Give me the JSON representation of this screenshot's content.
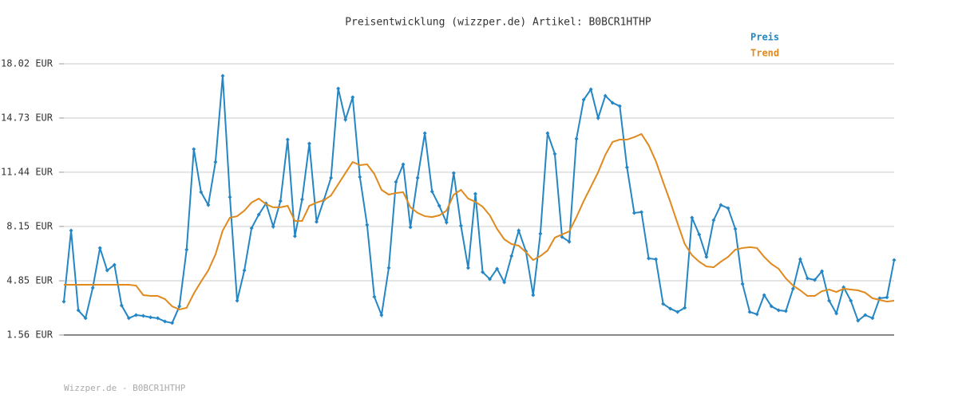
{
  "chart_data": {
    "type": "line",
    "title": "Preisentwicklung (wizzper.de) Artikel: B0BCR1HTHP",
    "footer": "Wizzper.de - B0BCR1HTHP",
    "ylim": [
      1.56,
      18.02
    ],
    "yticks": [
      {
        "value": 1.56,
        "label": "1.56 EUR"
      },
      {
        "value": 4.85,
        "label": "4.85 EUR"
      },
      {
        "value": 8.15,
        "label": "8.15 EUR"
      },
      {
        "value": 11.44,
        "label": "11.44 EUR"
      },
      {
        "value": 14.73,
        "label": "14.73 EUR"
      },
      {
        "value": 18.02,
        "label": "18.02 EUR"
      }
    ],
    "grid": true,
    "legend": "top-right",
    "series": [
      {
        "name": "Preis",
        "color": "#2486c4",
        "markers": true,
        "values": [
          3.59,
          7.9,
          3.06,
          2.58,
          4.42,
          6.84,
          5.48,
          5.82,
          3.35,
          2.58,
          2.77,
          2.72,
          2.63,
          2.58,
          2.38,
          2.29,
          3.3,
          6.74,
          12.84,
          10.23,
          9.45,
          12.06,
          17.29,
          9.93,
          3.64,
          5.48,
          8.05,
          8.87,
          9.55,
          8.14,
          9.69,
          13.42,
          7.56,
          9.79,
          13.18,
          8.43,
          9.74,
          11.1,
          16.52,
          14.63,
          15.99,
          11.15,
          8.24,
          3.88,
          2.77,
          5.63,
          10.85,
          11.92,
          8.1,
          11.1,
          13.81,
          10.27,
          9.4,
          8.39,
          11.39,
          8.19,
          5.63,
          10.13,
          5.38,
          4.95,
          5.58,
          4.76,
          6.35,
          7.9,
          6.64,
          3.98,
          7.71,
          13.81,
          12.55,
          7.51,
          7.22,
          13.47,
          15.84,
          16.47,
          14.73,
          16.08,
          15.65,
          15.45,
          11.73,
          8.97,
          9.02,
          6.21,
          6.16,
          3.45,
          3.16,
          2.96,
          3.21,
          8.68,
          7.66,
          6.3,
          8.53,
          9.45,
          9.26,
          8.0,
          4.66,
          2.96,
          2.82,
          3.98,
          3.3,
          3.06,
          3.01,
          4.37,
          6.16,
          5.0,
          4.9,
          5.43,
          3.64,
          2.87,
          4.46,
          3.64,
          2.43,
          2.77,
          2.58,
          3.79,
          3.84,
          6.11
        ]
      },
      {
        "name": "Trend",
        "color": "#e0891c",
        "markers": false,
        "values": [
          4.61,
          4.61,
          4.61,
          4.61,
          4.61,
          4.61,
          4.61,
          4.61,
          4.61,
          4.61,
          4.56,
          3.98,
          3.93,
          3.93,
          3.74,
          3.3,
          3.11,
          3.21,
          4.08,
          4.8,
          5.48,
          6.45,
          7.9,
          8.68,
          8.77,
          9.11,
          9.6,
          9.84,
          9.5,
          9.31,
          9.31,
          9.4,
          8.48,
          8.48,
          9.4,
          9.6,
          9.74,
          10.03,
          10.71,
          11.39,
          12.06,
          11.87,
          11.92,
          11.34,
          10.37,
          10.08,
          10.18,
          10.23,
          9.31,
          8.97,
          8.77,
          8.72,
          8.82,
          9.11,
          10.08,
          10.37,
          9.84,
          9.64,
          9.35,
          8.82,
          8.0,
          7.37,
          7.08,
          6.98,
          6.59,
          6.11,
          6.35,
          6.69,
          7.47,
          7.66,
          7.85,
          8.72,
          9.69,
          10.56,
          11.44,
          12.5,
          13.28,
          13.42,
          13.42,
          13.57,
          13.76,
          13.08,
          12.11,
          10.85,
          9.64,
          8.34,
          7.08,
          6.4,
          6.01,
          5.72,
          5.67,
          6.01,
          6.3,
          6.74,
          6.84,
          6.89,
          6.84,
          6.3,
          5.87,
          5.58,
          5.0,
          4.56,
          4.27,
          3.93,
          3.93,
          4.22,
          4.32,
          4.17,
          4.37,
          4.32,
          4.27,
          4.13,
          3.79,
          3.69,
          3.59,
          3.64
        ]
      }
    ]
  }
}
